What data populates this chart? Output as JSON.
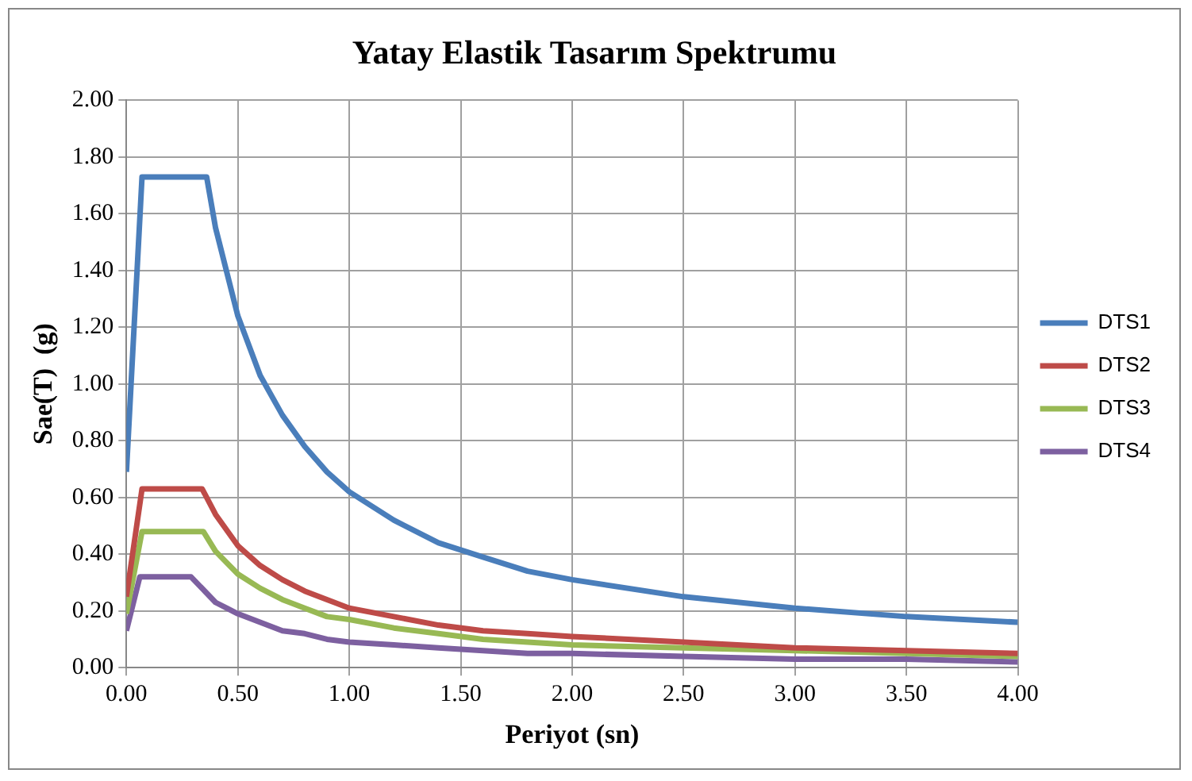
{
  "chart_data": {
    "type": "line",
    "title": "Yatay Elastik Tasarım Spektrumu",
    "xlabel": "Periyot (sn)",
    "ylabel": "Sae(T)  (g)",
    "xlim": [
      0,
      4
    ],
    "ylim": [
      0,
      2
    ],
    "xticks": [
      {
        "value": 0,
        "label": "0.00"
      },
      {
        "value": 0.5,
        "label": "0.50"
      },
      {
        "value": 1,
        "label": "1.00"
      },
      {
        "value": 1.5,
        "label": "1.50"
      },
      {
        "value": 2,
        "label": "2.00"
      },
      {
        "value": 2.5,
        "label": "2.50"
      },
      {
        "value": 3,
        "label": "3.00"
      },
      {
        "value": 3.5,
        "label": "3.50"
      },
      {
        "value": 4,
        "label": "4.00"
      }
    ],
    "yticks": [
      {
        "value": 0,
        "label": "0.00"
      },
      {
        "value": 0.2,
        "label": "0.20"
      },
      {
        "value": 0.4,
        "label": "0.40"
      },
      {
        "value": 0.6,
        "label": "0.60"
      },
      {
        "value": 0.8,
        "label": "0.80"
      },
      {
        "value": 1,
        "label": "1.00"
      },
      {
        "value": 1.2,
        "label": "1.20"
      },
      {
        "value": 1.4,
        "label": "1.40"
      },
      {
        "value": 1.6,
        "label": "1.60"
      },
      {
        "value": 1.8,
        "label": "1.80"
      },
      {
        "value": 2,
        "label": "2.00"
      }
    ],
    "grid": true,
    "legend": "right",
    "marker": "none",
    "line_style": "solid",
    "series": [
      {
        "name": "DTS1",
        "color": "#4a7ebb",
        "x": [
          0,
          0.07,
          0.36,
          0.4,
          0.5,
          0.6,
          0.7,
          0.8,
          0.9,
          1.0,
          1.2,
          1.4,
          1.6,
          1.8,
          2.0,
          2.5,
          3.0,
          3.5,
          4.0
        ],
        "values": [
          0.69,
          1.73,
          1.73,
          1.55,
          1.24,
          1.03,
          0.89,
          0.78,
          0.69,
          0.62,
          0.52,
          0.44,
          0.39,
          0.34,
          0.31,
          0.25,
          0.21,
          0.18,
          0.16
        ]
      },
      {
        "name": "DTS2",
        "color": "#be4b48",
        "x": [
          0,
          0.07,
          0.34,
          0.4,
          0.5,
          0.6,
          0.7,
          0.8,
          0.9,
          1.0,
          1.2,
          1.4,
          1.6,
          1.8,
          2.0,
          2.5,
          3.0,
          3.5,
          4.0
        ],
        "values": [
          0.25,
          0.63,
          0.63,
          0.54,
          0.43,
          0.36,
          0.31,
          0.27,
          0.24,
          0.21,
          0.18,
          0.15,
          0.13,
          0.12,
          0.11,
          0.09,
          0.07,
          0.06,
          0.05
        ]
      },
      {
        "name": "DTS3",
        "color": "#98b954",
        "x": [
          0,
          0.07,
          0.345,
          0.4,
          0.5,
          0.6,
          0.7,
          0.8,
          0.9,
          1.0,
          1.2,
          1.4,
          1.6,
          1.8,
          2.0,
          2.5,
          3.0,
          3.5,
          4.0
        ],
        "values": [
          0.19,
          0.48,
          0.48,
          0.41,
          0.33,
          0.28,
          0.24,
          0.21,
          0.18,
          0.17,
          0.14,
          0.12,
          0.1,
          0.09,
          0.08,
          0.07,
          0.06,
          0.05,
          0.04
        ]
      },
      {
        "name": "DTS4",
        "color": "#7d60a0",
        "x": [
          0,
          0.06,
          0.29,
          0.4,
          0.5,
          0.6,
          0.7,
          0.8,
          0.9,
          1.0,
          1.2,
          1.4,
          1.6,
          1.8,
          2.0,
          2.5,
          3.0,
          3.5,
          4.0
        ],
        "values": [
          0.13,
          0.32,
          0.32,
          0.23,
          0.19,
          0.16,
          0.13,
          0.12,
          0.1,
          0.09,
          0.08,
          0.07,
          0.06,
          0.05,
          0.05,
          0.04,
          0.03,
          0.03,
          0.02
        ]
      }
    ]
  }
}
